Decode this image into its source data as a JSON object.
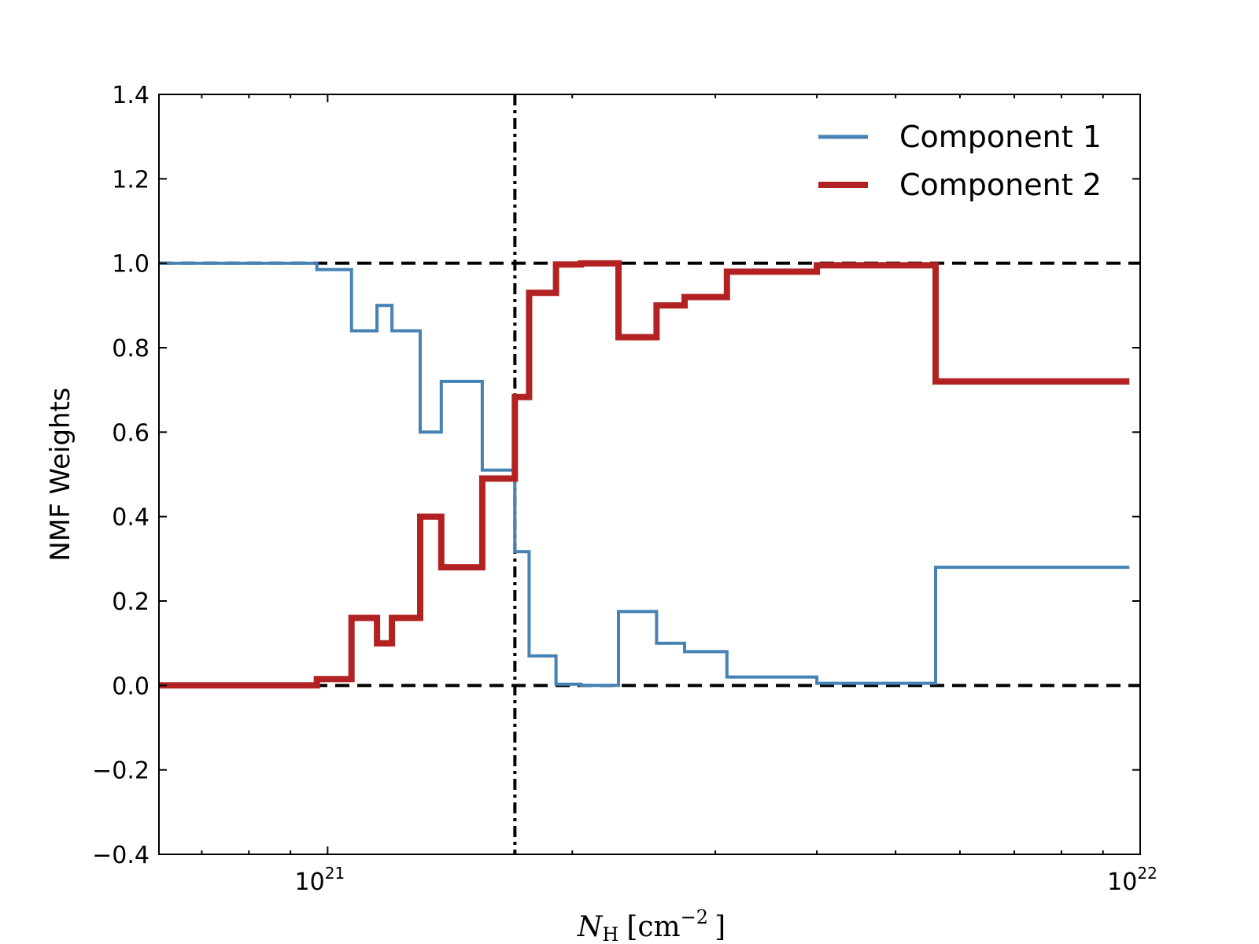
{
  "chart_data": {
    "type": "line",
    "step": "post",
    "title": "",
    "xlabel": "N_H [cm^-2]",
    "xlabel_symbol": "N",
    "xlabel_subscript": "H",
    "xlabel_unit_open": "[cm",
    "xlabel_exponent": "−2",
    "xlabel_unit_close": "]",
    "ylabel": "NMF Weights",
    "xscale": "log",
    "xlim": [
      6.2e+20,
      1e+22
    ],
    "ylim": [
      -0.4,
      1.4
    ],
    "yticks": [
      -0.4,
      -0.2,
      0.0,
      0.2,
      0.4,
      0.6,
      0.8,
      1.0,
      1.2,
      1.4
    ],
    "ytick_labels": [
      "−0.4",
      "−0.2",
      "0.0",
      "0.2",
      "0.4",
      "0.6",
      "0.8",
      "1.0",
      "1.2",
      "1.4"
    ],
    "xticks": [
      {
        "value": 1e+21,
        "base": "10",
        "exp": "21"
      },
      {
        "value": 1e+22,
        "base": "10",
        "exp": "22"
      }
    ],
    "x_minor_ticks": [
      7e+20,
      8e+20,
      9e+20,
      2e+21,
      3e+21,
      4e+21,
      5e+21,
      6e+21,
      7e+21,
      8e+21,
      9e+21
    ],
    "reference_lines": {
      "horizontal_dashed": [
        0.0,
        1.0
      ],
      "vertical_dashdot": 1.7e+21
    },
    "legend_position": "top-right",
    "series": [
      {
        "name": "Component 1",
        "color": "#4682b4",
        "x": [
          6.2e+20,
          9.7e+20,
          1.07e+21,
          1.15e+21,
          1.2e+21,
          1.3e+21,
          1.38e+21,
          1.55e+21,
          1.7e+21,
          1.77e+21,
          1.91e+21,
          2.05e+21,
          2.28e+21,
          2.54e+21,
          2.75e+21,
          3.1e+21,
          4e+21,
          5.6e+21,
          9.7e+21
        ],
        "y": [
          1.0,
          0.985,
          0.84,
          0.9,
          0.84,
          0.6,
          0.72,
          0.51,
          0.317,
          0.07,
          0.003,
          0.0,
          0.175,
          0.1,
          0.08,
          0.02,
          0.005,
          0.28,
          0.28
        ]
      },
      {
        "name": "Component 2",
        "color": "#b22222",
        "x": [
          6.2e+20,
          9.7e+20,
          1.07e+21,
          1.15e+21,
          1.2e+21,
          1.3e+21,
          1.38e+21,
          1.55e+21,
          1.7e+21,
          1.77e+21,
          1.91e+21,
          2.05e+21,
          2.28e+21,
          2.54e+21,
          2.75e+21,
          3.1e+21,
          4e+21,
          5.6e+21,
          9.7e+21
        ],
        "y": [
          0.0,
          0.015,
          0.16,
          0.1,
          0.16,
          0.4,
          0.28,
          0.49,
          0.683,
          0.93,
          0.997,
          1.0,
          0.825,
          0.9,
          0.92,
          0.98,
          0.995,
          0.72,
          0.72
        ]
      }
    ]
  }
}
